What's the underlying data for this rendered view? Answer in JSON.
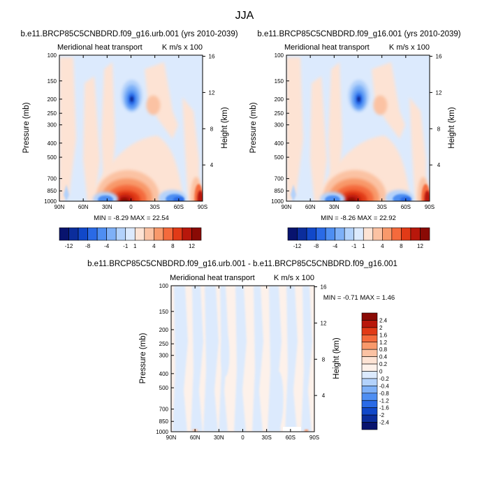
{
  "figure": {
    "title": "JJA",
    "common": {
      "left_subtitle": "Meridional heat transport",
      "right_subtitle": "K m/s x 100",
      "ylabel_left": "Pressure (mb)",
      "ylabel_right": "Height (km)",
      "x_ticks": [
        "90N",
        "60N",
        "30N",
        "0",
        "30S",
        "60S",
        "90S"
      ],
      "pressure_ticks": [
        "100",
        "150",
        "200",
        "250",
        "300",
        "400",
        "500",
        "700",
        "850",
        "1000"
      ],
      "height_ticks": [
        "16",
        "12",
        "8",
        "4"
      ]
    },
    "panels": [
      {
        "title": "b.e11.BRCP85C5CNBDRD.f09_g16.urb.001 (yrs 2010-2039)",
        "stats": "MIN = -8.29   MAX = 22.54"
      },
      {
        "title": "b.e11.BRCP85C5CNBDRD.f09_g16.001 (yrs 2010-2039)",
        "stats": "MIN = -8.26   MAX = 22.92"
      },
      {
        "title": "b.e11.BRCP85C5CNBDRD.f09_g16.urb.001 - b.e11.BRCP85C5CNBDRD.f09_g16.001",
        "stats": "MIN = -0.71   MAX =  1.46"
      }
    ],
    "colorbar_main": {
      "labels": [
        "-12",
        "-8",
        "-4",
        "-1",
        "1",
        "4",
        "8",
        "12"
      ],
      "colors": [
        "#08136e",
        "#0b2d9c",
        "#1148c9",
        "#2a6ae6",
        "#4e8ef2",
        "#7eb0f7",
        "#b3d2fb",
        "#dceafd",
        "#fde3d4",
        "#fbc2a3",
        "#f8996b",
        "#f46a3c",
        "#e13a17",
        "#b8170b",
        "#8a0a05"
      ]
    },
    "colorbar_diff": {
      "labels": [
        "2.4",
        "2",
        "1.6",
        "1.2",
        "0.8",
        "0.4",
        "0.2",
        "0",
        "-0.2",
        "-0.4",
        "-0.8",
        "-1.2",
        "-1.6",
        "-2",
        "-2.4"
      ],
      "colors": [
        "#8a0a05",
        "#b8170b",
        "#e13a17",
        "#f46a3c",
        "#f8996b",
        "#fbc2a3",
        "#fde3d4",
        "#fdf1ea",
        "#dceafd",
        "#b3d2fb",
        "#7eb0f7",
        "#4e8ef2",
        "#2a6ae6",
        "#1148c9",
        "#0b2d9c",
        "#08136e"
      ]
    }
  },
  "chart_data": [
    {
      "type": "heatmap",
      "title": "b.e11.BRCP85C5CNBDRD.f09_g16.urb.001 (yrs 2010-2039)",
      "subtitle": "Meridional heat transport",
      "units": "K m/s x 100",
      "xlabel": "",
      "ylabel": "Pressure (mb)",
      "ylabel_right": "Height (km)",
      "x_range": [
        "90N",
        "90S"
      ],
      "y_range_mb": [
        100,
        1000
      ],
      "min": -8.29,
      "max": 22.54,
      "features": [
        {
          "kind": "max",
          "lat": 5,
          "p_mb": 975,
          "value": 22.54
        },
        {
          "kind": "min",
          "lat": -1,
          "p_mb": 200,
          "value": -8.29
        },
        {
          "kind": "min",
          "lat": 32,
          "p_mb": 960
        },
        {
          "kind": "min",
          "lat": -55,
          "p_mb": 950
        },
        {
          "kind": "max",
          "lat": -85,
          "p_mb": 930
        },
        {
          "kind": "max",
          "lat": -28,
          "p_mb": 220
        }
      ]
    },
    {
      "type": "heatmap",
      "title": "b.e11.BRCP85C5CNBDRD.f09_g16.001 (yrs 2010-2039)",
      "subtitle": "Meridional heat transport",
      "units": "K m/s x 100",
      "xlabel": "",
      "ylabel": "Pressure (mb)",
      "ylabel_right": "Height (km)",
      "x_range": [
        "90N",
        "90S"
      ],
      "y_range_mb": [
        100,
        1000
      ],
      "min": -8.26,
      "max": 22.92,
      "features": [
        {
          "kind": "max",
          "lat": 5,
          "p_mb": 975,
          "value": 22.92
        },
        {
          "kind": "min",
          "lat": -1,
          "p_mb": 200,
          "value": -8.26
        },
        {
          "kind": "min",
          "lat": 32,
          "p_mb": 960
        },
        {
          "kind": "min",
          "lat": -55,
          "p_mb": 950
        },
        {
          "kind": "max",
          "lat": -85,
          "p_mb": 930
        },
        {
          "kind": "max",
          "lat": -28,
          "p_mb": 220
        }
      ]
    },
    {
      "type": "heatmap",
      "title": "b.e11.BRCP85C5CNBDRD.f09_g16.urb.001 - b.e11.BRCP85C5CNBDRD.f09_g16.001",
      "subtitle": "Meridional heat transport",
      "units": "K m/s x 100",
      "xlabel": "",
      "ylabel": "Pressure (mb)",
      "ylabel_right": "Height (km)",
      "x_range": [
        "90N",
        "90S"
      ],
      "y_range_mb": [
        100,
        1000
      ],
      "min": -0.71,
      "max": 1.46
    }
  ]
}
